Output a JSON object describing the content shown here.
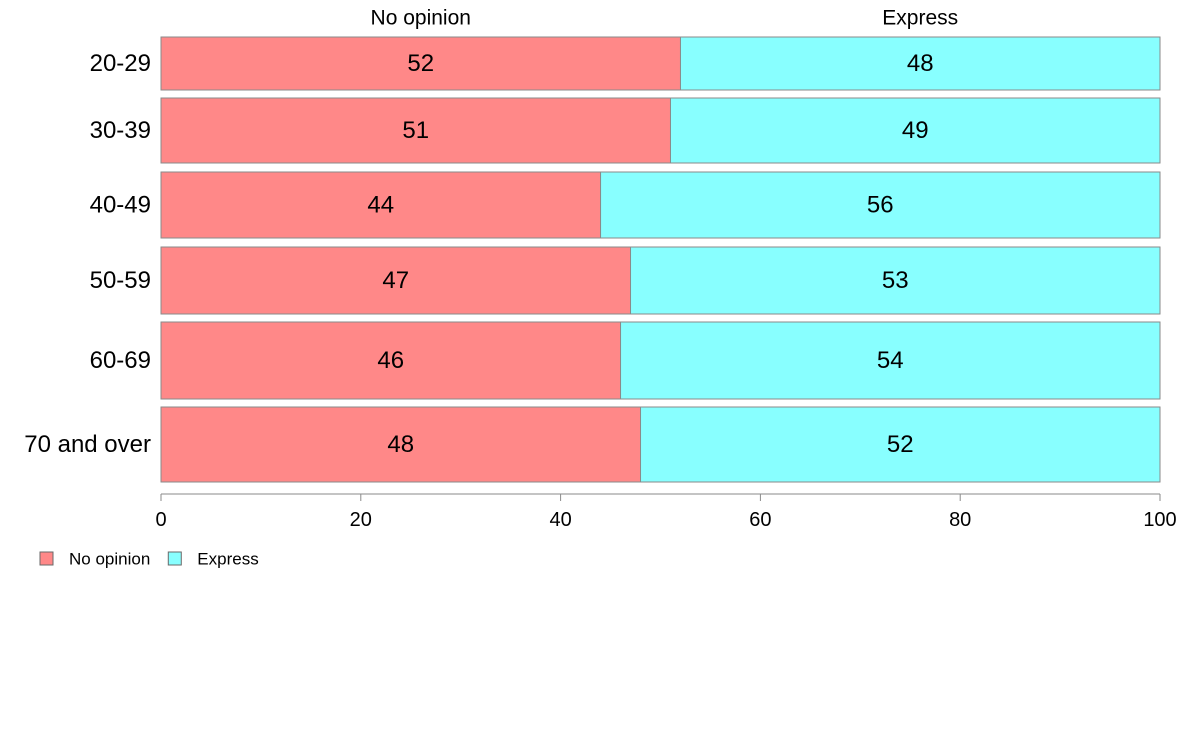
{
  "chart_data": {
    "type": "bar",
    "orientation": "horizontal",
    "stacked": true,
    "categories": [
      "20-29",
      "30-39",
      "40-49",
      "50-59",
      "60-69",
      "70 and over"
    ],
    "series": [
      {
        "name": "No opinion",
        "values": [
          52,
          51,
          44,
          47,
          46,
          48
        ],
        "color": "#ff8888"
      },
      {
        "name": "Express",
        "values": [
          48,
          49,
          56,
          53,
          54,
          52
        ],
        "color": "#88ffff"
      }
    ],
    "column_headers": [
      "No opinion",
      "Express"
    ],
    "title": "",
    "xlabel": "",
    "ylabel": "",
    "xlim": [
      0,
      100
    ],
    "xticks": [
      0,
      20,
      40,
      60,
      80,
      100
    ],
    "legend_position": "bottom-left",
    "grid": false
  }
}
